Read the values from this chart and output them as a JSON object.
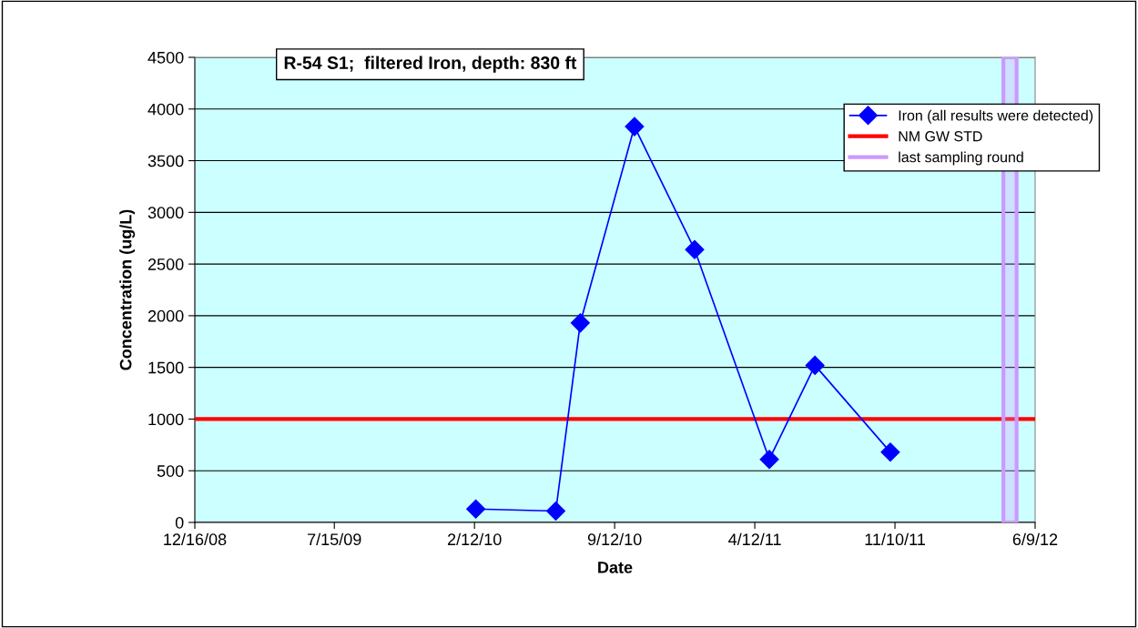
{
  "chart_data": {
    "type": "line",
    "title": "R-54 S1;  filtered Iron, depth: 830 ft",
    "xlabel": "Date",
    "ylabel": "Concentration (ug/L)",
    "x": [
      "2010-02-14",
      "2010-06-15",
      "2010-07-22",
      "2010-10-12",
      "2011-01-11",
      "2011-05-04",
      "2011-07-12",
      "2011-11-03"
    ],
    "series": [
      {
        "name": "Iron (all results were detected)",
        "color": "#0000ff",
        "values": [
          130,
          110,
          1930,
          3830,
          2640,
          610,
          1520,
          680
        ]
      }
    ],
    "marker": "diamond",
    "line_style": "solid",
    "ref_lines": [
      {
        "axis": "y",
        "value": 1000,
        "label": "NM GW STD",
        "color": "#ff0000",
        "line_style": "solid"
      }
    ],
    "bands": [
      {
        "axis": "x",
        "from": "2012-04-22",
        "to": "2012-05-12",
        "label": "last sampling round",
        "color": "#cc99ff"
      }
    ],
    "xlim": [
      "2008-12-16",
      "2012-06-09"
    ],
    "xticks": [
      {
        "value": "2008-12-16",
        "label": "12/16/08"
      },
      {
        "value": "2009-07-15",
        "label": "7/15/09"
      },
      {
        "value": "2010-02-12",
        "label": "2/12/10"
      },
      {
        "value": "2010-09-12",
        "label": "9/12/10"
      },
      {
        "value": "2011-04-12",
        "label": "4/12/11"
      },
      {
        "value": "2011-11-10",
        "label": "11/10/11"
      },
      {
        "value": "2012-06-09",
        "label": "6/9/12"
      }
    ],
    "ylim": [
      0,
      4500
    ],
    "yticks": [
      0,
      500,
      1000,
      1500,
      2000,
      2500,
      3000,
      3500,
      4000,
      4500
    ],
    "grid": "y",
    "legend": "top right"
  }
}
